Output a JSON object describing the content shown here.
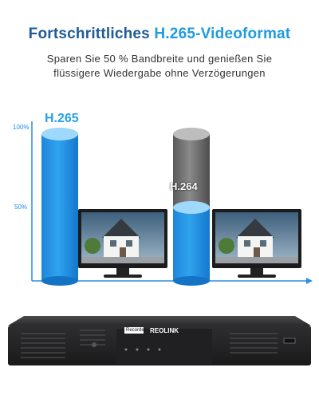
{
  "headline": {
    "part1": "Fortschrittliches ",
    "part2": "H.265-Videoformat"
  },
  "subline": {
    "line1": "Sparen Sie 50 % Bandbreite und genießen Sie",
    "line2": "flüssigere Wiedergabe ohne Verzögerungen"
  },
  "chart": {
    "tick_100": "100%",
    "tick_50": "50%",
    "bar_h265_label": "H.265",
    "bar_h264_label": "H.264"
  },
  "dvr": {
    "badge_text": "Recorder",
    "brand": "REOLINK"
  },
  "colors": {
    "headline_dark": "#1f5b96",
    "headline_accent": "#1f9be0",
    "bar_blue": "#1f8de0",
    "bar_grey": "#6f6f6f"
  }
}
